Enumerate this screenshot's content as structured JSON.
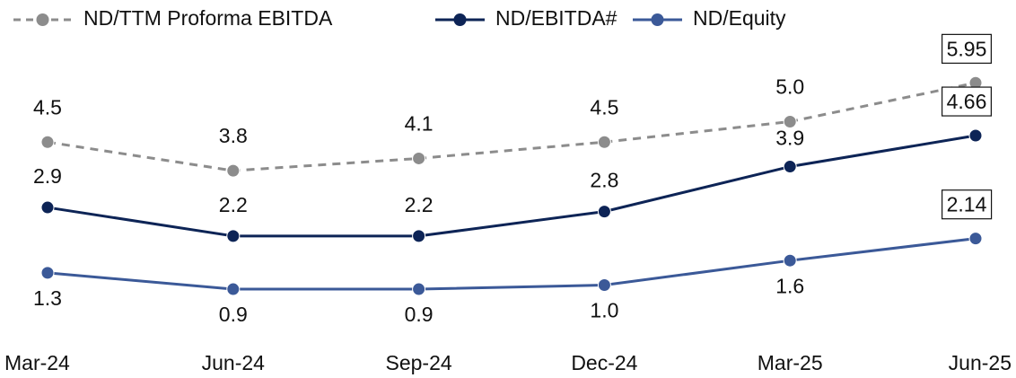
{
  "chart_data": {
    "type": "line",
    "categories": [
      "Mar-24",
      "Jun-24",
      "Sep-24",
      "Dec-24",
      "Mar-25",
      "Jun-25"
    ],
    "ylim": [
      0,
      6
    ],
    "series": [
      {
        "name": "ND/TTM Proforma EBITDA",
        "color": "#8c8c8c",
        "dashed": true,
        "values": [
          4.5,
          3.8,
          4.1,
          4.5,
          5.0,
          5.95
        ],
        "value_labels": [
          "4.5",
          "3.8",
          "4.1",
          "4.5",
          "5.0",
          "5.95"
        ]
      },
      {
        "name": "ND/EBITDA#",
        "color": "#0d2456",
        "dashed": false,
        "values": [
          2.9,
          2.2,
          2.2,
          2.8,
          3.9,
          4.66
        ],
        "value_labels": [
          "2.9",
          "2.2",
          "2.2",
          "2.8",
          "3.9",
          "4.66"
        ]
      },
      {
        "name": "ND/Equity",
        "color": "#3b5998",
        "dashed": false,
        "values": [
          1.3,
          0.9,
          0.9,
          1.0,
          1.6,
          2.14
        ],
        "value_labels": [
          "1.3",
          "0.9",
          "0.9",
          "1.0",
          "1.6",
          "2.14"
        ]
      }
    ]
  }
}
